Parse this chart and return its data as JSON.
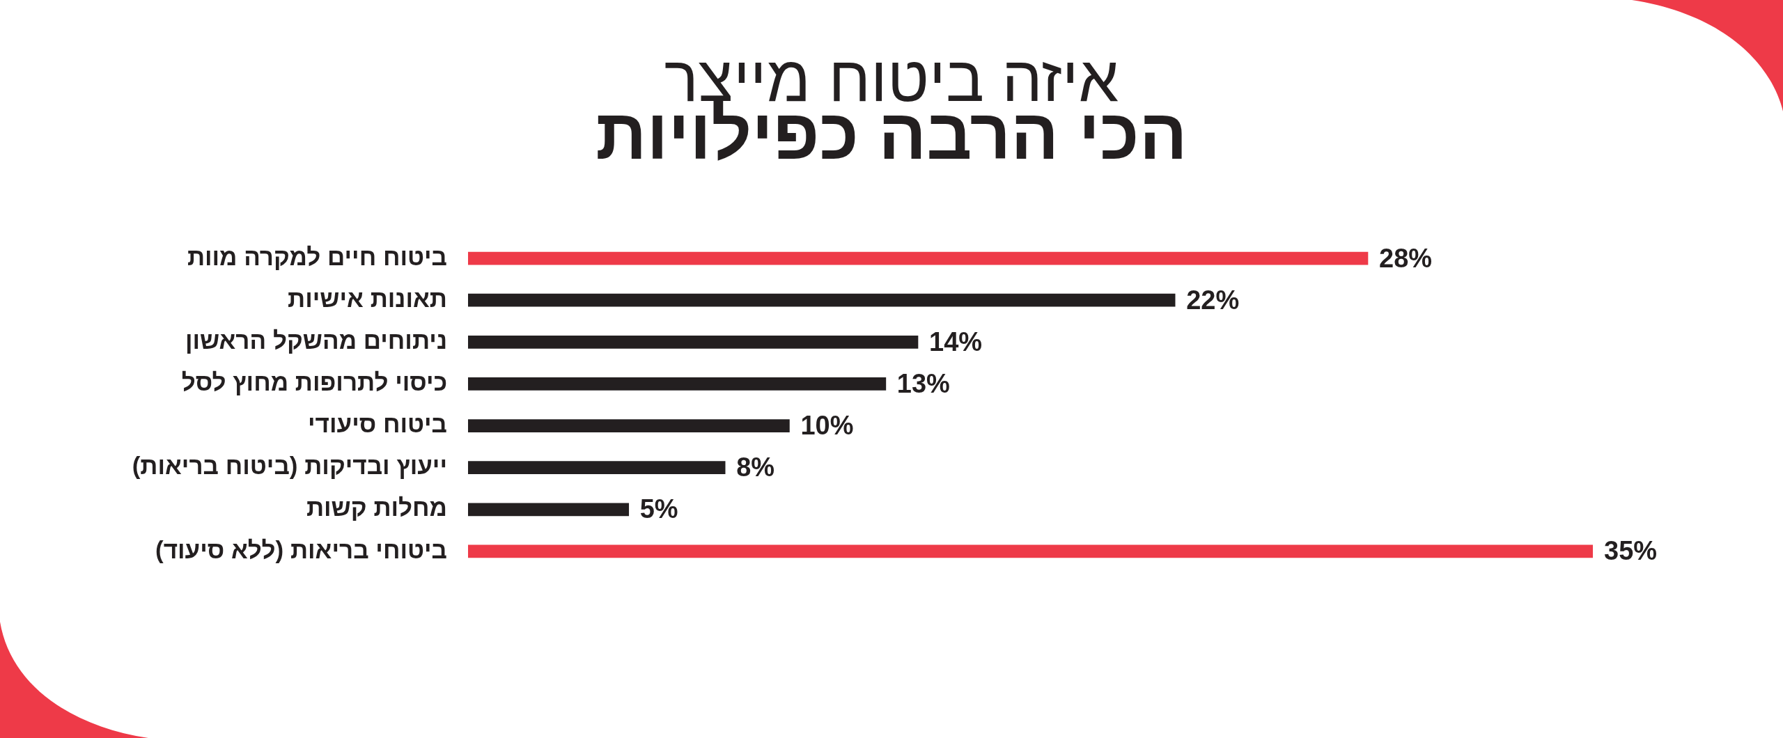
{
  "chart_data": {
    "type": "bar",
    "orientation": "horizontal",
    "title": "איזה ביטוח מייצר",
    "subtitle": "הכי הרבה כפילויות",
    "categories": [
      "ביטוח חיים למקרה מוות",
      "תאונות אישיות",
      "ניתוחים מהשקל הראשון",
      "כיסוי לתרופות מחוץ לסל",
      "ביטוח סיעודי",
      "ייעוץ ובדיקות (ביטוח בריאות)",
      "מחלות קשות",
      "ביטוחי בריאות (ללא סיעוד)"
    ],
    "values": [
      28,
      22,
      14,
      13,
      10,
      8,
      5,
      35
    ],
    "colors": [
      "#ee3a48",
      "#231f20",
      "#231f20",
      "#231f20",
      "#231f20",
      "#231f20",
      "#231f20",
      "#ee3a48"
    ],
    "value_labels": [
      "28%",
      "22%",
      "14%",
      "13%",
      "10%",
      "8%",
      "5%",
      "35%"
    ]
  }
}
